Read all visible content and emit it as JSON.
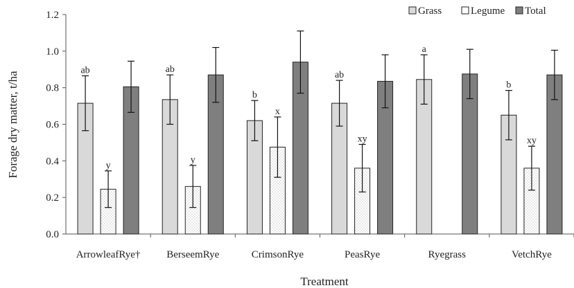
{
  "chart_data": {
    "type": "bar",
    "xlabel": "Treatment",
    "ylabel": "Forage dry matter, t/ha",
    "ylim": [
      0,
      1.2
    ],
    "yticks": [
      "0.0",
      "0.2",
      "0.4",
      "0.6",
      "0.8",
      "1.0",
      "1.2"
    ],
    "grid": false,
    "legend_position": "top-right",
    "categories": [
      "ArrowleafRye†",
      "BerseemRye",
      "CrimsonRye",
      "PeasRye",
      "Ryegrass",
      "VetchRye"
    ],
    "series": [
      {
        "name": "Grass",
        "color": "#d9d9d9",
        "pattern": "solid",
        "values": [
          0.715,
          0.735,
          0.62,
          0.715,
          0.845,
          0.65
        ],
        "error": [
          0.15,
          0.135,
          0.11,
          0.125,
          0.135,
          0.135
        ],
        "letters": [
          "ab",
          "ab",
          "b",
          "ab",
          "a",
          "b"
        ]
      },
      {
        "name": "Legume",
        "color": "#ffffff",
        "pattern": "dotted",
        "values": [
          0.245,
          0.26,
          0.475,
          0.36,
          null,
          0.36
        ],
        "error": [
          0.1,
          0.115,
          0.165,
          0.13,
          null,
          0.12
        ],
        "letters": [
          "y",
          "y",
          "x",
          "xy",
          "",
          "xy"
        ]
      },
      {
        "name": "Total",
        "color": "#7f7f7f",
        "pattern": "solid",
        "values": [
          0.805,
          0.87,
          0.94,
          0.835,
          0.875,
          0.87
        ],
        "error": [
          0.14,
          0.15,
          0.17,
          0.145,
          0.135,
          0.135
        ],
        "letters": [
          "",
          "",
          "",
          "",
          "",
          ""
        ]
      }
    ]
  }
}
